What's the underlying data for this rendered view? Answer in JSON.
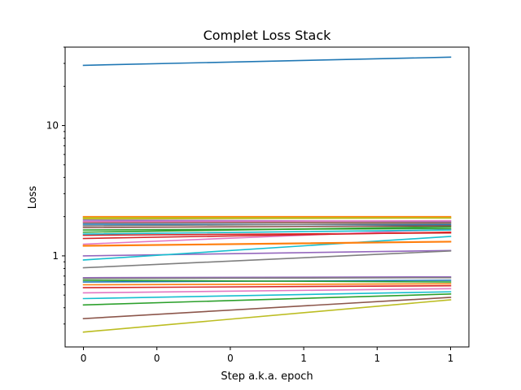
{
  "chart_data": {
    "type": "line",
    "title": "Complet Loss Stack",
    "xlabel": "Step a.k.a. epoch",
    "ylabel": "Loss",
    "yscale": "log",
    "x": [
      0,
      1
    ],
    "xlim": [
      -0.05,
      1.05
    ],
    "x_tick_positions": [
      0,
      0.2,
      0.4,
      0.6,
      0.8,
      1.0
    ],
    "x_tick_labels": [
      "0",
      "0",
      "0",
      "1",
      "1",
      "1"
    ],
    "ylim": [
      0.2,
      40
    ],
    "y_tick_values": [
      1,
      10
    ],
    "y_tick_labels": [
      "1",
      "10"
    ],
    "y_minor_ticks": [
      0.3,
      0.4,
      0.5,
      0.6,
      0.7,
      0.8,
      0.9,
      2,
      3,
      4,
      5,
      6,
      7,
      8,
      9,
      20,
      30,
      40
    ],
    "legend": "none",
    "grid": false,
    "series": [
      {
        "color": "#1f77b4",
        "values": [
          29.0,
          33.5
        ]
      },
      {
        "color": "#ff7f0e",
        "values": [
          2.0,
          2.0
        ]
      },
      {
        "color": "#2ca02c",
        "values": [
          1.52,
          1.67
        ]
      },
      {
        "color": "#d62728",
        "values": [
          1.44,
          1.5
        ]
      },
      {
        "color": "#9467bd",
        "values": [
          1.0,
          1.1
        ]
      },
      {
        "color": "#8c564b",
        "values": [
          1.8,
          1.8
        ]
      },
      {
        "color": "#e377c2",
        "values": [
          1.23,
          1.6
        ]
      },
      {
        "color": "#7f7f7f",
        "values": [
          0.81,
          1.09
        ]
      },
      {
        "color": "#bcbd22",
        "values": [
          1.92,
          1.95
        ]
      },
      {
        "color": "#17becf",
        "values": [
          0.93,
          1.41
        ]
      },
      {
        "color": "#1f77b4",
        "values": [
          1.75,
          1.73
        ]
      },
      {
        "color": "#ff7f0e",
        "values": [
          1.2,
          1.29
        ]
      },
      {
        "color": "#2ca02c",
        "values": [
          1.58,
          1.62
        ]
      },
      {
        "color": "#d62728",
        "values": [
          1.36,
          1.52
        ]
      },
      {
        "color": "#9467bd",
        "values": [
          1.88,
          1.84
        ]
      },
      {
        "color": "#8c564b",
        "values": [
          1.65,
          1.7
        ]
      },
      {
        "color": "#e377c2",
        "values": [
          1.83,
          1.86
        ]
      },
      {
        "color": "#7f7f7f",
        "values": [
          1.7,
          1.77
        ]
      },
      {
        "color": "#bcbd22",
        "values": [
          1.96,
          1.96
        ]
      },
      {
        "color": "#17becf",
        "values": [
          1.47,
          1.58
        ]
      },
      {
        "color": "#ff7f0e",
        "values": [
          1.19,
          1.28
        ]
      },
      {
        "color": "#1f77b4",
        "values": [
          0.63,
          0.65
        ]
      },
      {
        "color": "#ff7f0e",
        "values": [
          0.6,
          0.61
        ]
      },
      {
        "color": "#2ca02c",
        "values": [
          0.42,
          0.51
        ]
      },
      {
        "color": "#d62728",
        "values": [
          0.57,
          0.59
        ]
      },
      {
        "color": "#9467bd",
        "values": [
          0.68,
          0.69
        ]
      },
      {
        "color": "#8c564b",
        "values": [
          0.33,
          0.48
        ]
      },
      {
        "color": "#e377c2",
        "values": [
          0.52,
          0.56
        ]
      },
      {
        "color": "#7f7f7f",
        "values": [
          0.67,
          0.68
        ]
      },
      {
        "color": "#bcbd22",
        "values": [
          0.26,
          0.46
        ]
      },
      {
        "color": "#17becf",
        "values": [
          0.47,
          0.53
        ]
      },
      {
        "color": "#2ca02c",
        "values": [
          0.65,
          0.63
        ]
      }
    ]
  }
}
